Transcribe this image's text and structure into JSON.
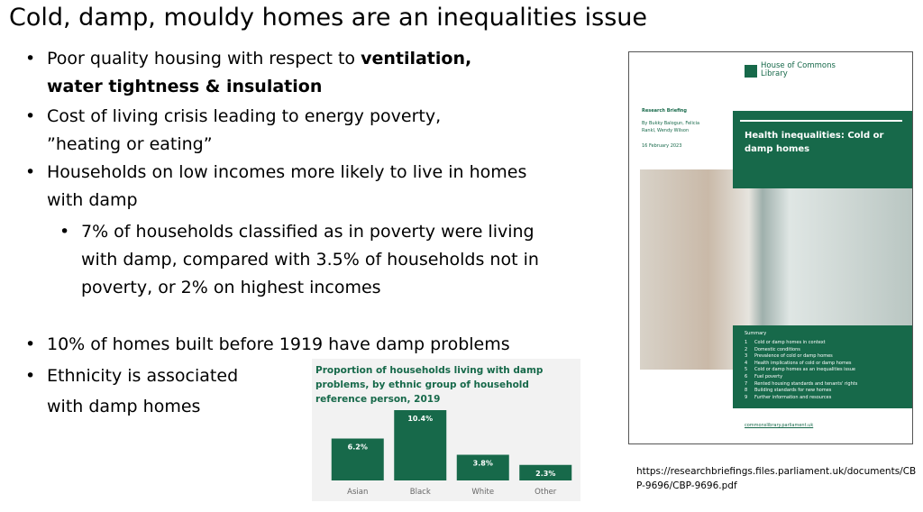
{
  "title": "Cold, damp, mouldy homes are an inequalities issue",
  "bullets": [
    {
      "text": "Poor quality housing with respect to ",
      "bold": "ventilation, water tightness & insulation"
    },
    {
      "text": "Cost of living crisis leading to energy poverty, ”heating or eating”"
    },
    {
      "text": "Households on low incomes more likely to live in homes with damp"
    },
    {
      "text": "7% of households classified as in poverty were living with damp, compared with 3.5% of households not in poverty, or 2% on highest incomes"
    },
    {
      "text": "10% of homes built before 1919 have damp problems"
    },
    {
      "text": "Ethnicity is associated with damp homes"
    }
  ],
  "chart_data": {
    "type": "bar",
    "title": "Proportion of households living with damp problems, by ethnic group of household reference person, 2019",
    "categories": [
      "Asian",
      "Black",
      "White",
      "Other"
    ],
    "values": [
      6.2,
      10.4,
      3.8,
      2.3
    ],
    "value_labels": [
      "6.2%",
      "10.4%",
      "3.8%",
      "2.3%"
    ],
    "color": "#17694a"
  },
  "report": {
    "publisher": "House of Commons Library",
    "kind": "Research Briefing",
    "authors": "By Bukky Balogun, Felicia Rankl, Wendy Wilson",
    "date": "16 February 2023",
    "title": "Health inequalities: Cold or damp homes",
    "summary_heading": "Summary",
    "summary_items": [
      {
        "number": "1",
        "text": "Cold or damp homes in context"
      },
      {
        "number": "2",
        "text": "Domestic conditions"
      },
      {
        "number": "3",
        "text": "Prevalence of cold or damp homes"
      },
      {
        "number": "4",
        "text": "Health implications of cold or damp homes"
      },
      {
        "number": "5",
        "text": "Cold or damp homes as an inequalities issue"
      },
      {
        "number": "6",
        "text": "Fuel poverty"
      },
      {
        "number": "7",
        "text": "Rented housing standards and tenants' rights"
      },
      {
        "number": "8",
        "text": "Building standards for new homes"
      },
      {
        "number": "9",
        "text": "Further information and resources"
      }
    ],
    "website": "commonslibrary.parliament.uk"
  },
  "source_url": "https://researchbriefings.files.parliament.uk/documents/CBP-9696/CBP-9696.pdf"
}
